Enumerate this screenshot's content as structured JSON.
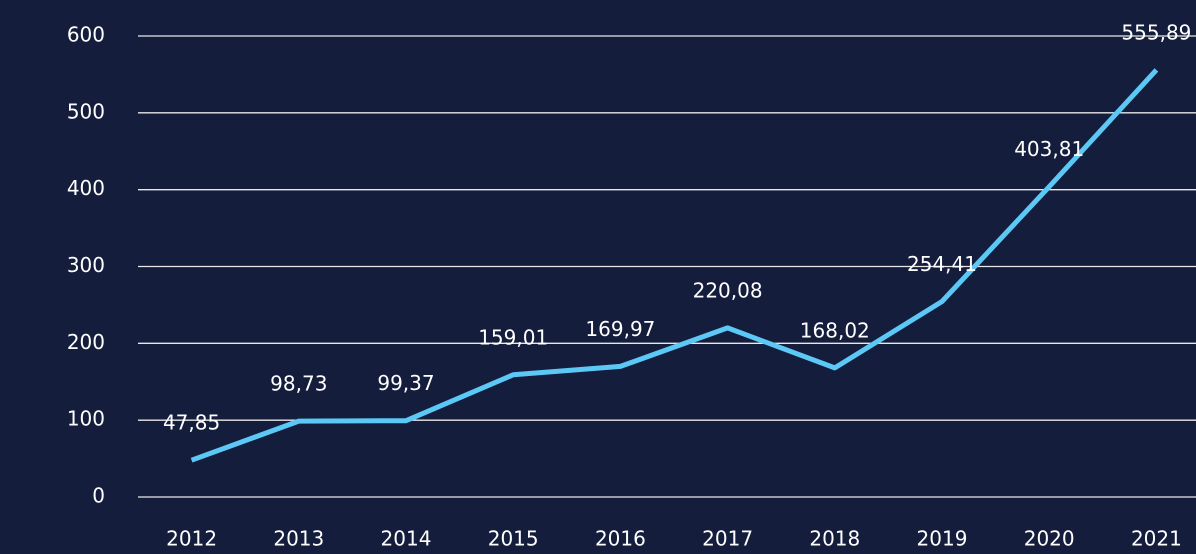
{
  "chart_data": {
    "type": "line",
    "categories": [
      "2012",
      "2013",
      "2014",
      "2015",
      "2016",
      "2017",
      "2018",
      "2019",
      "2020",
      "2021"
    ],
    "values": [
      47.85,
      98.73,
      99.37,
      159.01,
      169.97,
      220.08,
      168.02,
      254.41,
      403.81,
      555.89
    ],
    "value_labels": [
      "47,85",
      "98,73",
      "99,37",
      "159,01",
      "169,97",
      "220,08",
      "168,02",
      "254,41",
      "403,81",
      "555,89"
    ],
    "color": "#5bc8f5",
    "ylim": [
      0,
      600
    ],
    "yticks": [
      0,
      100,
      200,
      300,
      400,
      500,
      600
    ],
    "grid": true
  }
}
